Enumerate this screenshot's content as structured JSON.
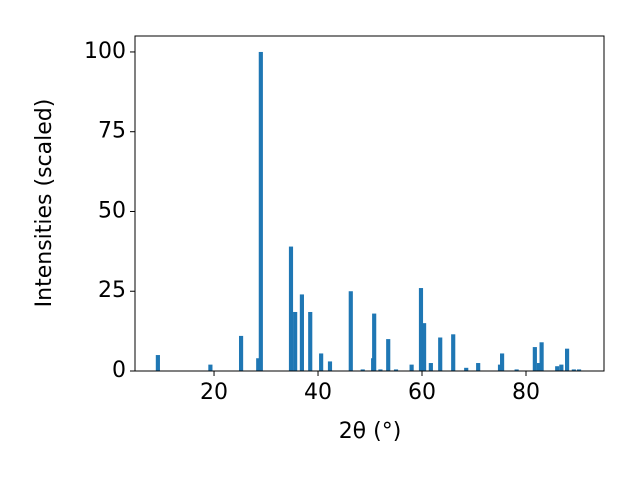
{
  "chart_data": {
    "type": "bar",
    "xlabel": "2θ (°)",
    "ylabel": "Intensities (scaled)",
    "color": "#1f77b4",
    "x": [
      9.2,
      19.3,
      25.2,
      28.5,
      29.0,
      34.8,
      35.6,
      36.9,
      38.5,
      40.6,
      42.3,
      46.3,
      48.6,
      50.6,
      50.8,
      52.0,
      53.5,
      55.0,
      58.0,
      59.8,
      60.4,
      61.7,
      63.5,
      66.0,
      68.5,
      70.8,
      75.0,
      75.4,
      78.2,
      81.7,
      82.5,
      83.0,
      86.0,
      86.8,
      87.9,
      89.2,
      90.2
    ],
    "values": [
      5,
      2,
      11,
      4,
      100,
      39,
      18.5,
      24,
      18.5,
      5.5,
      3,
      25,
      0.5,
      4,
      18,
      0.5,
      10,
      0.5,
      2,
      26,
      15,
      2.5,
      10.5,
      11.5,
      1,
      2.5,
      2,
      5.5,
      0.5,
      7.5,
      2.5,
      9,
      1.5,
      2,
      7,
      0.5,
      0.5
    ],
    "xlim": [
      4.8,
      95
    ],
    "ylim": [
      0,
      105
    ],
    "xticks": [
      20,
      40,
      60,
      80
    ],
    "yticks": [
      0,
      25,
      50,
      75,
      100
    ]
  }
}
